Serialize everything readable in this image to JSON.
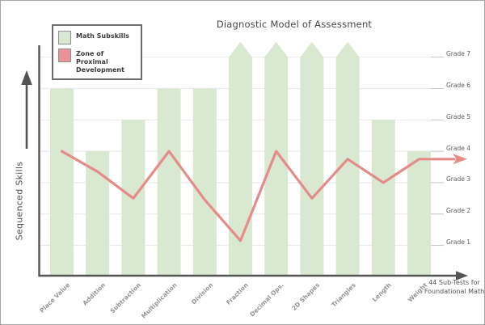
{
  "title": "Diagnostic Model of Assessment",
  "y_axis_label": "Sequenced Skills",
  "x_axis_note": "44 Sub-Tests for Foundational Math",
  "legend": {
    "items": [
      {
        "label": "Math Subskills",
        "color": "#d9e8d1",
        "border_color": "#8f8f8f"
      },
      {
        "label": "Zone of Proximal Development",
        "color": "#ea9396",
        "border_color": "#8f8f8f"
      }
    ]
  },
  "chart_data": {
    "type": "bar",
    "title": "Diagnostic Model of Assessment",
    "categories": [
      "Place Value",
      "Addition",
      "Subtraction",
      "Multiplication",
      "Division",
      "Fraction",
      "Decimal Ops.",
      "2D Shapes",
      "Triangles",
      "Length",
      "Weight"
    ],
    "y_axis": {
      "unit": "grade",
      "position": "right",
      "labels_top_to_bottom": [
        "Grade 7",
        "Grade 6",
        "Grade 5",
        "Grade 4",
        "Grade 3",
        "Grade 2",
        "Grade 1"
      ],
      "range": [
        1,
        7
      ],
      "grid": true
    },
    "xlabel": "",
    "ylabel": "Sequenced Skills",
    "series": [
      {
        "name": "Math Subskills",
        "type": "bar",
        "color": "#d9e8d1",
        "values": [
          6,
          4,
          5,
          6,
          6,
          7,
          7,
          7,
          7,
          5,
          4
        ],
        "exceeds_scale": [
          false,
          false,
          false,
          false,
          false,
          true,
          true,
          true,
          true,
          false,
          false
        ]
      },
      {
        "name": "Zone of Proximal Development",
        "type": "line",
        "color": "#e58b88",
        "values": [
          4.0,
          3.35,
          2.5,
          4.0,
          2.45,
          1.15,
          4.0,
          2.5,
          3.75,
          3.0,
          3.75
        ],
        "ends_with_arrow": true
      }
    ],
    "annotations": {
      "x_axis_note": "44 Sub-Tests for Foundational Math",
      "y_axis_arrow_label": "Sequenced Skills"
    },
    "legend_position": "top-left"
  },
  "colors": {
    "bar_fill": "#d9e8d1",
    "line": "#e58b88",
    "axis": "#545454",
    "gridline": "#ebebeb",
    "tick": "#c9c9c9",
    "title_text": "#464646",
    "grade_label_text": "#5c5c5c",
    "category_label_text": "#949494",
    "note_text": "#555555"
  }
}
